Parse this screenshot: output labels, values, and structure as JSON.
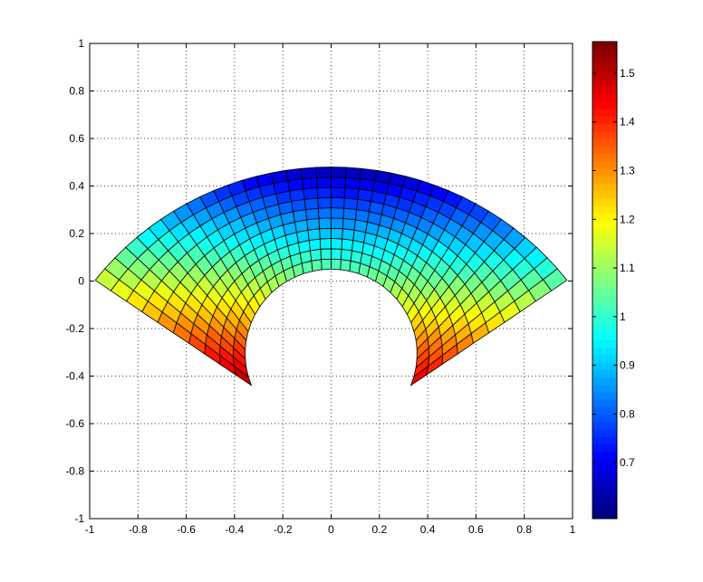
{
  "chart_data": {
    "type": "heatmap",
    "subtype": "colored quadrilateral mesh (patch) on curved annular-sector domain",
    "title": "",
    "xlabel": "",
    "ylabel": "",
    "xlim": [
      -1,
      1
    ],
    "ylim": [
      -1,
      1
    ],
    "xticks": [
      "-1",
      "-0.8",
      "-0.6",
      "-0.4",
      "-0.2",
      "0",
      "0.2",
      "0.4",
      "0.6",
      "0.8",
      "1"
    ],
    "yticks": [
      "1",
      "0.8",
      "0.6",
      "0.4",
      "0.2",
      "0",
      "-0.2",
      "-0.4",
      "-0.6",
      "-0.8",
      "-1"
    ],
    "grid": true,
    "colormap": "jet",
    "colorbar": {
      "placement": "right",
      "range": [
        0.585,
        1.565
      ],
      "ticks": [
        "0.7",
        "0.8",
        "0.9",
        "1",
        "1.1",
        "1.2",
        "1.3",
        "1.4",
        "1.5"
      ],
      "tick_values": [
        0.7,
        0.8,
        0.9,
        1.0,
        1.1,
        1.2,
        1.3,
        1.4,
        1.5
      ]
    },
    "mesh": {
      "outer_arc": {
        "center": [
          0,
          -0.76
        ],
        "radius": 1.24,
        "half_angle_deg": 52
      },
      "inner_arc": {
        "center": [
          0,
          -0.306
        ],
        "radius": 0.356,
        "half_angle_deg": 112
      },
      "cells_along_arc": 36,
      "cells_across": 10,
      "value_model": {
        "intercept": 1.09,
        "y_coef": -0.95,
        "x_coef": -0.06
      },
      "value_range": [
        0.62,
        1.56
      ]
    }
  }
}
